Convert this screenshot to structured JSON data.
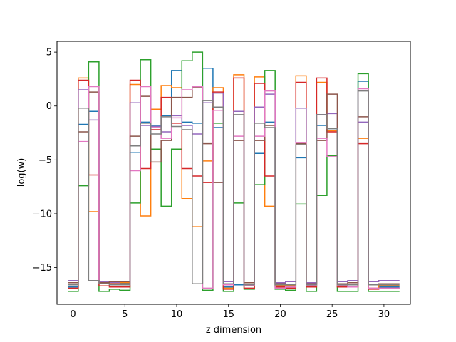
{
  "chart_data": {
    "type": "line",
    "drawstyle": "steps",
    "xlabel": "z dimension",
    "ylabel": "log(w)",
    "xlim": [
      -1.55,
      32.55
    ],
    "ylim": [
      -18.4,
      6
    ],
    "xticks": [
      0,
      5,
      10,
      15,
      20,
      25,
      30
    ],
    "yticks": [
      5,
      0,
      -5,
      -10,
      -15
    ],
    "xtick_labels": [
      "0",
      "5",
      "10",
      "15",
      "20",
      "25",
      "30"
    ],
    "ytick_labels": [
      "5",
      "0",
      "−5",
      "−10",
      "−15"
    ],
    "grid": false,
    "x": [
      0,
      1,
      2,
      3,
      4,
      5,
      6,
      7,
      8,
      9,
      10,
      11,
      12,
      13,
      14,
      15,
      16,
      17,
      18,
      19,
      20,
      21,
      22,
      23,
      24,
      25,
      26,
      27,
      28,
      29,
      30,
      31
    ],
    "series": [
      {
        "color": "#1f77b4",
        "values": [
          -16.8,
          -1.7,
          -0.5,
          -16.4,
          -16.5,
          -16.5,
          -4.3,
          -1.5,
          -1.8,
          -0.9,
          3.3,
          -1.5,
          -1.6,
          3.5,
          -2.0,
          -16.8,
          -16.6,
          -16.6,
          -4.4,
          -1.5,
          -16.8,
          -16.8,
          -4.8,
          -16.6,
          -1.8,
          -2.1,
          -16.6,
          -16.6,
          2.3,
          -16.6,
          -16.8,
          -16.8
        ]
      },
      {
        "color": "#ff7f0e",
        "values": [
          -16.6,
          2.6,
          -9.8,
          -16.5,
          -16.5,
          -16.4,
          2.0,
          -10.2,
          -0.3,
          1.9,
          1.7,
          -8.6,
          -11.2,
          -5.1,
          1.7,
          -16.9,
          2.9,
          -16.4,
          2.7,
          -9.3,
          -16.7,
          -16.7,
          2.8,
          -16.5,
          2.2,
          -2.3,
          -16.6,
          -16.8,
          -3.0,
          -16.9,
          -16.7,
          -16.7
        ]
      },
      {
        "color": "#2ca02c",
        "values": [
          -17.2,
          -7.4,
          4.1,
          -17.2,
          -17.0,
          -17.1,
          -9.0,
          4.3,
          -4.0,
          -9.3,
          -4.0,
          4.2,
          5.0,
          -17.1,
          -1.6,
          -17.2,
          -9.0,
          -17.0,
          -7.3,
          3.3,
          -17.0,
          -17.1,
          -9.1,
          -17.2,
          -8.3,
          -4.6,
          -17.2,
          -17.2,
          3.0,
          -17.2,
          -17.2,
          -17.2
        ]
      },
      {
        "color": "#d62728",
        "values": [
          -16.9,
          2.4,
          -6.4,
          -16.7,
          -16.8,
          -16.8,
          2.4,
          -5.8,
          -2.2,
          0.8,
          -1.6,
          -5.8,
          -6.5,
          -7.1,
          1.3,
          -17.0,
          2.6,
          -16.9,
          2.1,
          -6.5,
          -16.8,
          -16.9,
          2.2,
          -16.8,
          2.6,
          -2.4,
          -16.8,
          -16.8,
          -3.5,
          -17.0,
          -16.9,
          -16.9
        ]
      },
      {
        "color": "#9467bd",
        "values": [
          -16.2,
          1.5,
          -1.3,
          -16.3,
          -16.4,
          -16.3,
          0.3,
          -1.8,
          -1.9,
          -2.4,
          -0.9,
          -1.8,
          -2.6,
          0.3,
          1.2,
          -16.3,
          -0.5,
          -16.4,
          -0.1,
          1.1,
          -16.4,
          -16.3,
          -0.2,
          -16.4,
          -0.8,
          -0.7,
          -16.3,
          -16.2,
          -1.5,
          -16.3,
          -16.2,
          -16.2
        ]
      },
      {
        "color": "#8c564b",
        "values": [
          -16.4,
          -2.4,
          1.3,
          -16.4,
          -16.3,
          -16.3,
          -2.8,
          0.9,
          -5.2,
          -3.2,
          0.8,
          0.8,
          1.7,
          -3.5,
          -7.1,
          -16.5,
          -3.2,
          -16.4,
          -3.2,
          -1.8,
          -16.5,
          -16.6,
          -3.5,
          -16.5,
          -3.2,
          1.1,
          -16.5,
          -16.4,
          -1.0,
          -16.6,
          -16.5,
          -16.5
        ]
      },
      {
        "color": "#e377c2",
        "values": [
          -16.6,
          -3.3,
          1.8,
          -16.5,
          -16.6,
          -16.6,
          -6.0,
          1.8,
          -2.0,
          -3.0,
          -1.1,
          1.5,
          1.8,
          -16.9,
          -0.4,
          -16.6,
          -2.8,
          -16.7,
          -2.8,
          1.4,
          -16.9,
          -16.8,
          -3.4,
          -16.7,
          -3.0,
          -4.7,
          -16.7,
          -16.8,
          1.6,
          -16.9,
          -16.9,
          -16.9
        ]
      },
      {
        "color": "#7f7f7f",
        "values": [
          -16.6,
          -0.2,
          -16.2,
          -16.5,
          -16.6,
          -16.6,
          -3.7,
          -1.6,
          -2.6,
          -1.0,
          -1.9,
          -2.2,
          -16.5,
          0.5,
          -0.1,
          -16.5,
          -0.8,
          -16.6,
          -1.6,
          -2.0,
          -16.6,
          -16.6,
          -3.6,
          -16.6,
          -0.8,
          -2.1,
          -16.6,
          -16.6,
          1.4,
          -16.6,
          -16.6,
          -16.6
        ]
      }
    ]
  }
}
